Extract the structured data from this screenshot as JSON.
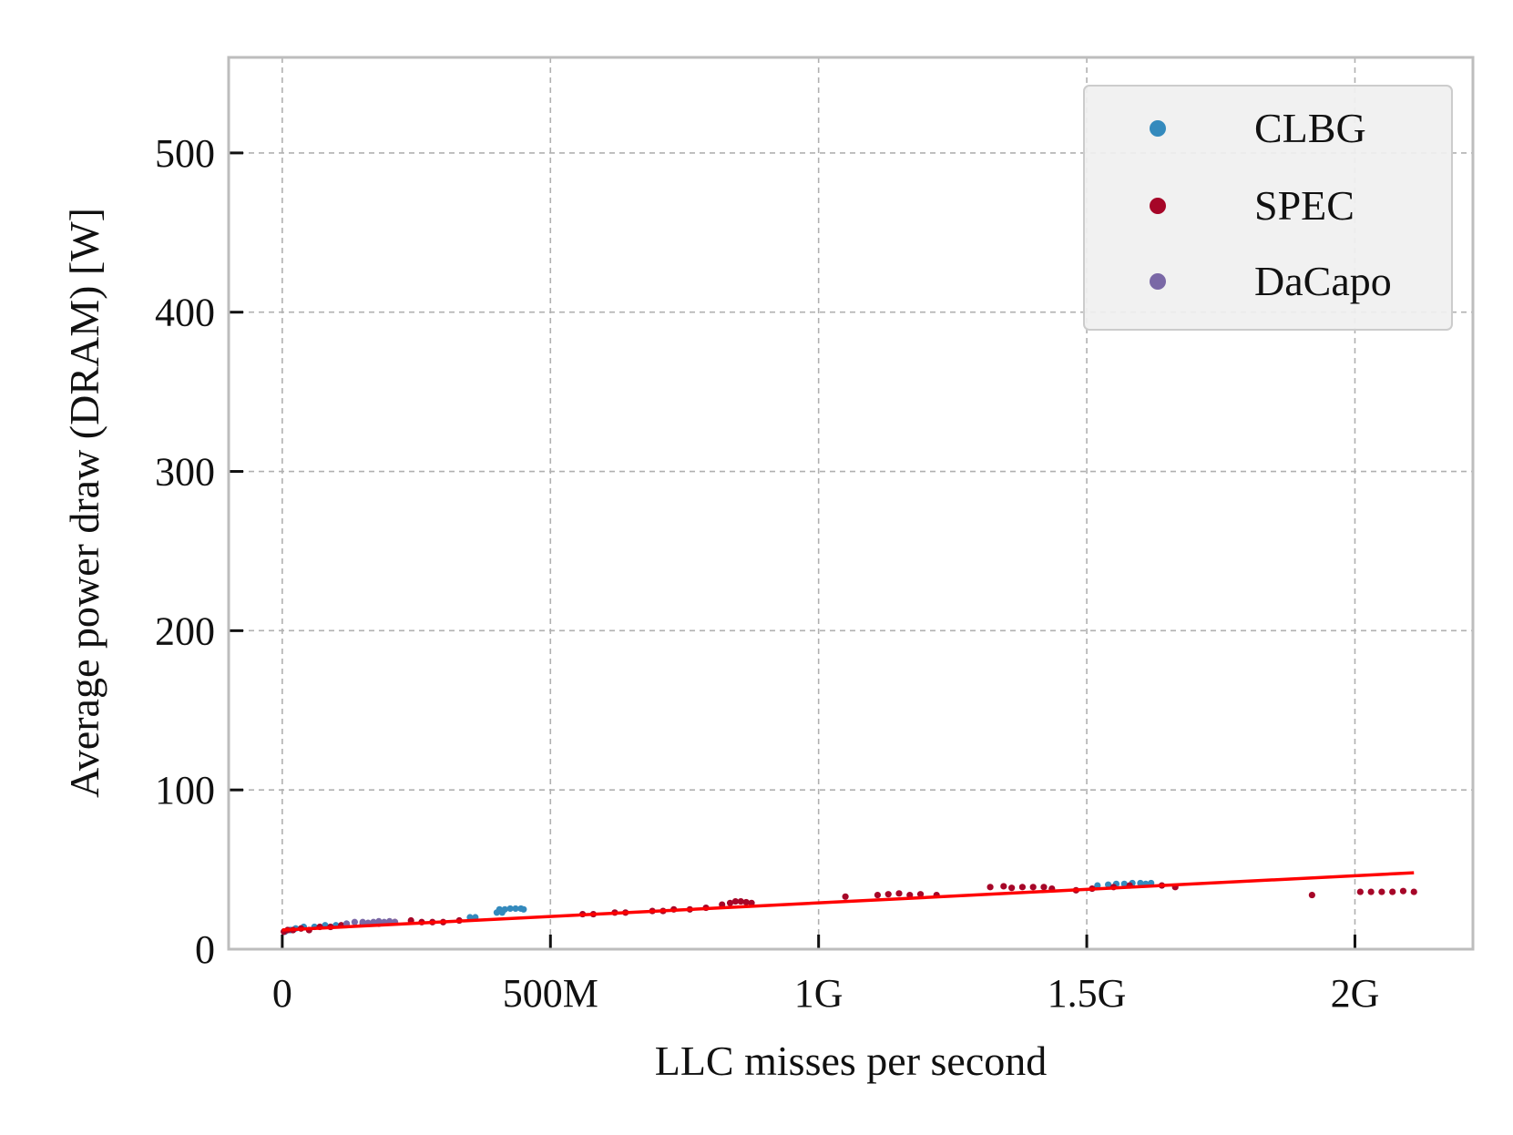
{
  "chart_data": {
    "type": "scatter",
    "title": "",
    "xlabel": "LLC misses per second",
    "ylabel": "Average power draw (DRAM) [W]",
    "xlim": [
      -100000000.0,
      2220000000.0
    ],
    "ylim": [
      0,
      560
    ],
    "x_ticks": [
      {
        "value": 0,
        "label": "0"
      },
      {
        "value": 500000000,
        "label": "500M"
      },
      {
        "value": 1000000000,
        "label": "1G"
      },
      {
        "value": 1500000000,
        "label": "1.5G"
      },
      {
        "value": 2000000000,
        "label": "2G"
      }
    ],
    "y_ticks": [
      {
        "value": 0,
        "label": "0"
      },
      {
        "value": 100,
        "label": "100"
      },
      {
        "value": 200,
        "label": "200"
      },
      {
        "value": 300,
        "label": "300"
      },
      {
        "value": 400,
        "label": "400"
      },
      {
        "value": 500,
        "label": "500"
      }
    ],
    "grid": true,
    "legend_position": "top-right",
    "series": [
      {
        "name": "CLBG",
        "color": "#348ABD",
        "points": [
          [
            5000000.0,
            11
          ],
          [
            15000000.0,
            12
          ],
          [
            25000000.0,
            13
          ],
          [
            40000000.0,
            14
          ],
          [
            60000000.0,
            14
          ],
          [
            80000000.0,
            15
          ],
          [
            100000000.0,
            15
          ],
          [
            120000000.0,
            16
          ],
          [
            350000000.0,
            20
          ],
          [
            360000000.0,
            20
          ],
          [
            400000000.0,
            23
          ],
          [
            410000000.0,
            23
          ],
          [
            405000000.0,
            25
          ],
          [
            415000000.0,
            25
          ],
          [
            425000000.0,
            25.5
          ],
          [
            435000000.0,
            25.5
          ],
          [
            445000000.0,
            25.5
          ],
          [
            450000000.0,
            25
          ],
          [
            1520000000.0,
            40
          ],
          [
            1540000000.0,
            40.5
          ],
          [
            1555000000.0,
            41
          ],
          [
            1570000000.0,
            41
          ],
          [
            1585000000.0,
            41.5
          ],
          [
            1600000000.0,
            41.5
          ],
          [
            1610000000.0,
            41
          ],
          [
            1620000000.0,
            41.5
          ]
        ]
      },
      {
        "name": "SPEC",
        "color": "#A60628",
        "points": [
          [
            3000000.0,
            11
          ],
          [
            10000000.0,
            12
          ],
          [
            20000000.0,
            12
          ],
          [
            35000000.0,
            13
          ],
          [
            50000000.0,
            12
          ],
          [
            70000000.0,
            14
          ],
          [
            90000000.0,
            14
          ],
          [
            110000000.0,
            15
          ],
          [
            150000000.0,
            16
          ],
          [
            180000000.0,
            16
          ],
          [
            210000000.0,
            17
          ],
          [
            240000000.0,
            18
          ],
          [
            260000000.0,
            17
          ],
          [
            280000000.0,
            17
          ],
          [
            300000000.0,
            17
          ],
          [
            330000000.0,
            18
          ],
          [
            560000000.0,
            22
          ],
          [
            580000000.0,
            22
          ],
          [
            620000000.0,
            23
          ],
          [
            640000000.0,
            23
          ],
          [
            690000000.0,
            24
          ],
          [
            710000000.0,
            24
          ],
          [
            730000000.0,
            25
          ],
          [
            760000000.0,
            25
          ],
          [
            790000000.0,
            26
          ],
          [
            820000000.0,
            28
          ],
          [
            835000000.0,
            29
          ],
          [
            845000000.0,
            30
          ],
          [
            855000000.0,
            30
          ],
          [
            865000000.0,
            29.5
          ],
          [
            875000000.0,
            29
          ],
          [
            1050000000.0,
            33
          ],
          [
            1110000000.0,
            34
          ],
          [
            1130000000.0,
            34.5
          ],
          [
            1150000000.0,
            35
          ],
          [
            1170000000.0,
            34
          ],
          [
            1190000000.0,
            34.5
          ],
          [
            1220000000.0,
            34
          ],
          [
            1320000000.0,
            39
          ],
          [
            1345000000.0,
            39.5
          ],
          [
            1360000000.0,
            38.5
          ],
          [
            1380000000.0,
            39
          ],
          [
            1400000000.0,
            39
          ],
          [
            1420000000.0,
            39
          ],
          [
            1435000000.0,
            38
          ],
          [
            1480000000.0,
            37
          ],
          [
            1510000000.0,
            38
          ],
          [
            1550000000.0,
            39
          ],
          [
            1580000000.0,
            40
          ],
          [
            1640000000.0,
            40
          ],
          [
            1665000000.0,
            39
          ],
          [
            1920000000.0,
            34
          ],
          [
            2010000000.0,
            36
          ],
          [
            2030000000.0,
            36
          ],
          [
            2050000000.0,
            36
          ],
          [
            2070000000.0,
            36
          ],
          [
            2090000000.0,
            36.5
          ],
          [
            2110000000.0,
            36
          ]
        ]
      },
      {
        "name": "DaCapo",
        "color": "#7A68A6",
        "points": [
          [
            120000000.0,
            16
          ],
          [
            135000000.0,
            17
          ],
          [
            150000000.0,
            17
          ],
          [
            160000000.0,
            16.5
          ],
          [
            170000000.0,
            17
          ],
          [
            180000000.0,
            17.5
          ],
          [
            190000000.0,
            17
          ],
          [
            200000000.0,
            17.5
          ],
          [
            210000000.0,
            17
          ]
        ]
      }
    ],
    "fit_line": {
      "color": "#ff0000",
      "x": [
        0,
        2110000000
      ],
      "y": [
        12,
        48
      ]
    }
  }
}
